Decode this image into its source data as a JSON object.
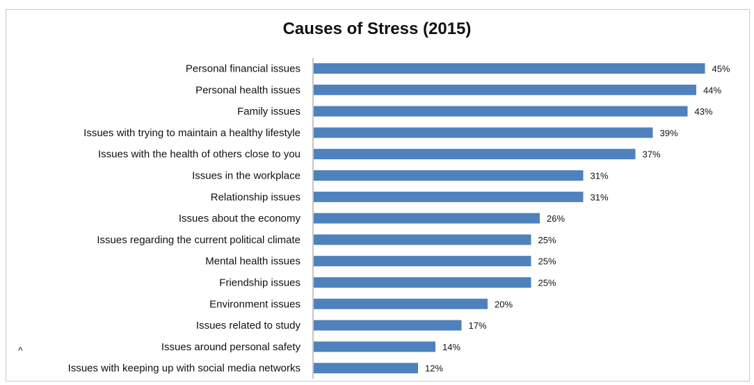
{
  "chart_data": {
    "type": "bar",
    "orientation": "horizontal",
    "title": "Causes of Stress (2015)",
    "xlabel": "",
    "ylabel": "",
    "xlim": [
      0,
      50
    ],
    "grid": false,
    "legend": "none",
    "bar_color": "#4F81BD",
    "categories": [
      "Personal financial issues",
      "Personal health issues",
      "Family issues",
      "Issues with trying to maintain a healthy lifestyle",
      "Issues with the health of others close to you",
      "Issues in the workplace",
      "Relationship issues",
      "Issues about the economy",
      "Issues regarding the current political climate",
      "Mental health issues",
      "Friendship issues",
      "Environment issues",
      "Issues related to study",
      "Issues around personal safety",
      "Issues with keeping up with social media networks"
    ],
    "values": [
      45,
      44,
      43,
      39,
      37,
      31,
      31,
      26,
      25,
      25,
      25,
      20,
      17,
      14,
      12
    ],
    "value_labels": [
      "45%",
      "44%",
      "43%",
      "39%",
      "37%",
      "31%",
      "31%",
      "26%",
      "25%",
      "25%",
      "25%",
      "20%",
      "17%",
      "14%",
      "12%"
    ]
  },
  "caret_text": "^"
}
